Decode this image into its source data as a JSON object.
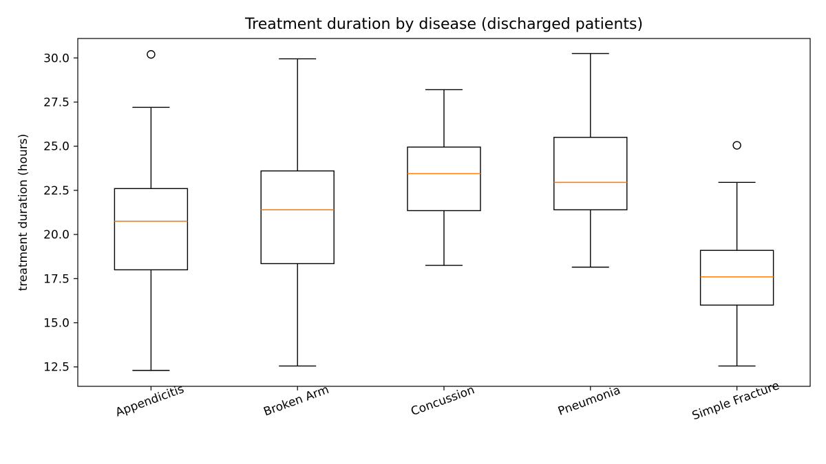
{
  "chart_data": {
    "type": "box",
    "title": "Treatment duration by disease (discharged patients)",
    "xlabel": "",
    "ylabel": "treatment duration (hours)",
    "ylim": [
      11.4,
      31.1
    ],
    "yticks": [
      "12.5",
      "15.0",
      "17.5",
      "20.0",
      "22.5",
      "25.0",
      "27.5",
      "30.0"
    ],
    "categories": [
      "Appendicitis",
      "Broken Arm",
      "Concussion",
      "Pneumonia",
      "Simple Fracture"
    ],
    "boxes": [
      {
        "name": "Appendicitis",
        "whisker_low": 12.3,
        "q1": 18.0,
        "median": 20.75,
        "q3": 22.6,
        "whisker_high": 27.2,
        "outliers": [
          30.2
        ]
      },
      {
        "name": "Broken Arm",
        "whisker_low": 12.55,
        "q1": 18.35,
        "median": 21.4,
        "q3": 23.6,
        "whisker_high": 29.95,
        "outliers": []
      },
      {
        "name": "Concussion",
        "whisker_low": 18.25,
        "q1": 21.35,
        "median": 23.45,
        "q3": 24.95,
        "whisker_high": 28.2,
        "outliers": []
      },
      {
        "name": "Pneumonia",
        "whisker_low": 18.15,
        "q1": 21.4,
        "median": 22.95,
        "q3": 25.5,
        "whisker_high": 30.25,
        "outliers": []
      },
      {
        "name": "Simple Fracture",
        "whisker_low": 12.55,
        "q1": 16.0,
        "median": 17.6,
        "q3": 19.1,
        "whisker_high": 22.95,
        "outliers": [
          25.05
        ]
      }
    ],
    "grid": false,
    "legend": "none",
    "colors": {
      "box": "#000000",
      "median": "#ff7f0e",
      "outlier": "#000000"
    }
  }
}
